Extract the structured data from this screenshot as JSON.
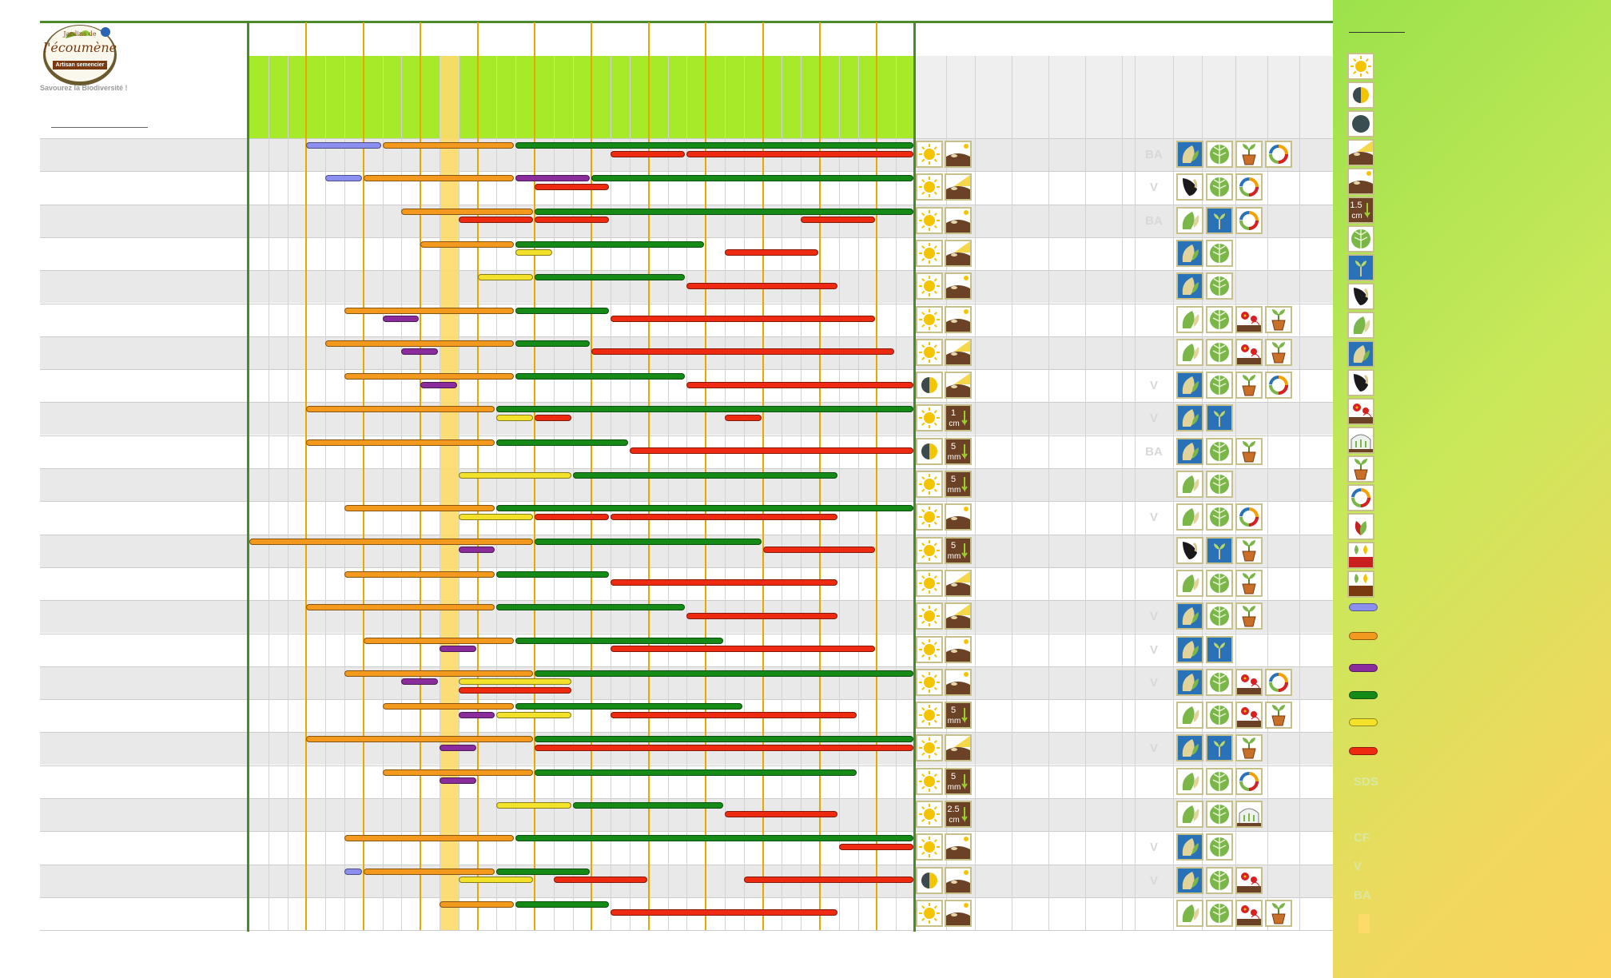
{
  "brand": {
    "logo_lines": [
      "Jardins de",
      "l'écoumène",
      "Artisan semencier"
    ],
    "tagline": "Savourez la Biodiversité !"
  },
  "colors": {
    "lavender": "#8b8ff0",
    "orange": "#f39a1e",
    "purple": "#8a2c9c",
    "green": "#168a16",
    "yellow": "#f3e12b",
    "red": "#ee2a10",
    "header_green": "#a6ea2a",
    "frame_green": "#4a8a2a",
    "month_gold": "#e5a900",
    "highlight": "#fddb6a"
  },
  "month_columns": 12,
  "rows": [
    {
      "bars": [
        {
          "c": "lavender",
          "s": 3,
          "e": 7,
          "l": 0
        },
        {
          "c": "orange",
          "s": 7,
          "e": 14,
          "l": 0
        },
        {
          "c": "green",
          "s": 14,
          "e": 35,
          "l": 0
        },
        {
          "c": "red",
          "s": 19,
          "e": 23,
          "l": 1
        },
        {
          "c": "red",
          "s": 23,
          "e": 35,
          "l": 1
        }
      ],
      "exposure": "sun",
      "soil": "soil",
      "badge": "BA",
      "icons": [
        "seed-blue-icon",
        "leaf-icon",
        "pot-icon",
        "cycle-icon"
      ]
    },
    {
      "bars": [
        {
          "c": "lavender",
          "s": 4,
          "e": 6,
          "l": 0
        },
        {
          "c": "orange",
          "s": 6,
          "e": 14,
          "l": 0
        },
        {
          "c": "purple",
          "s": 14,
          "e": 18,
          "l": 0
        },
        {
          "c": "green",
          "s": 18,
          "e": 35,
          "l": 0
        },
        {
          "c": "red",
          "s": 15,
          "e": 19,
          "l": 1
        }
      ],
      "exposure": "sun",
      "soil": "sun-soil",
      "badge": "V",
      "icons": [
        "seed-black-icon",
        "leaf-icon",
        "cycle-icon"
      ]
    },
    {
      "bars": [
        {
          "c": "orange",
          "s": 8,
          "e": 15,
          "l": 0
        },
        {
          "c": "green",
          "s": 15,
          "e": 35,
          "l": 0
        },
        {
          "c": "red",
          "s": 11,
          "e": 15,
          "l": 1
        },
        {
          "c": "red",
          "s": 15,
          "e": 19,
          "l": 1
        },
        {
          "c": "red",
          "s": 29,
          "e": 33,
          "l": 1
        }
      ],
      "exposure": "sun",
      "soil": "soil",
      "badge": "BA",
      "icons": [
        "seed-green-icon",
        "sprout-icon",
        "cycle-icon"
      ]
    },
    {
      "bars": [
        {
          "c": "orange",
          "s": 9,
          "e": 14,
          "l": 0
        },
        {
          "c": "green",
          "s": 14,
          "e": 24,
          "l": 0
        },
        {
          "c": "yellow",
          "s": 14,
          "e": 16,
          "l": 1
        },
        {
          "c": "red",
          "s": 25,
          "e": 30,
          "l": 1
        }
      ],
      "exposure": "sun",
      "soil": "sun-soil",
      "badge": "",
      "icons": [
        "seed-blue-icon",
        "leaf-icon"
      ]
    },
    {
      "bars": [
        {
          "c": "yellow",
          "s": 12,
          "e": 15,
          "l": 0
        },
        {
          "c": "green",
          "s": 15,
          "e": 23,
          "l": 0
        },
        {
          "c": "red",
          "s": 23,
          "e": 31,
          "l": 1
        }
      ],
      "exposure": "sun",
      "soil": "soil",
      "badge": "",
      "icons": [
        "seed-blue-icon",
        "leaf-icon"
      ]
    },
    {
      "bars": [
        {
          "c": "orange",
          "s": 5,
          "e": 14,
          "l": 0
        },
        {
          "c": "green",
          "s": 14,
          "e": 19,
          "l": 0
        },
        {
          "c": "purple",
          "s": 7,
          "e": 9,
          "l": 1
        },
        {
          "c": "red",
          "s": 19,
          "e": 33,
          "l": 1
        }
      ],
      "exposure": "sun",
      "soil": "soil",
      "badge": "",
      "icons": [
        "seed-green-icon",
        "leaf-icon",
        "flower-icon",
        "pot-icon"
      ]
    },
    {
      "bars": [
        {
          "c": "orange",
          "s": 4,
          "e": 14,
          "l": 0
        },
        {
          "c": "green",
          "s": 14,
          "e": 18,
          "l": 0
        },
        {
          "c": "purple",
          "s": 8,
          "e": 10,
          "l": 1
        },
        {
          "c": "red",
          "s": 18,
          "e": 34,
          "l": 1
        }
      ],
      "exposure": "sun",
      "soil": "sun-soil",
      "badge": "",
      "icons": [
        "seed-green-icon",
        "leaf-icon",
        "flower-icon",
        "pot-icon"
      ]
    },
    {
      "bars": [
        {
          "c": "orange",
          "s": 5,
          "e": 14,
          "l": 0
        },
        {
          "c": "green",
          "s": 14,
          "e": 23,
          "l": 0
        },
        {
          "c": "purple",
          "s": 9,
          "e": 11,
          "l": 1
        },
        {
          "c": "red",
          "s": 23,
          "e": 35,
          "l": 1
        }
      ],
      "exposure": "half",
      "soil": "sun-soil",
      "badge": "V",
      "icons": [
        "seed-blue-icon",
        "leaf-icon",
        "pot-icon",
        "cycle-icon"
      ]
    },
    {
      "bars": [
        {
          "c": "orange",
          "s": 3,
          "e": 13,
          "l": 0
        },
        {
          "c": "green",
          "s": 13,
          "e": 35,
          "l": 0
        },
        {
          "c": "yellow",
          "s": 13,
          "e": 15,
          "l": 1
        },
        {
          "c": "red",
          "s": 15,
          "e": 17,
          "l": 1
        },
        {
          "c": "red",
          "s": 25,
          "e": 27,
          "l": 1
        }
      ],
      "exposure": "sun",
      "soil": "depth",
      "depth": [
        "1",
        "cm"
      ],
      "badge": "V",
      "icons": [
        "seed-blue-icon",
        "sprout-icon"
      ]
    },
    {
      "bars": [
        {
          "c": "orange",
          "s": 3,
          "e": 13,
          "l": 0
        },
        {
          "c": "green",
          "s": 13,
          "e": 20,
          "l": 0
        },
        {
          "c": "red",
          "s": 20,
          "e": 35,
          "l": 1
        }
      ],
      "exposure": "half",
      "soil": "depth",
      "depth": [
        "5",
        "mm"
      ],
      "badge": "BA",
      "icons": [
        "seed-blue-icon",
        "leaf-icon",
        "pot-icon"
      ]
    },
    {
      "bars": [
        {
          "c": "yellow",
          "s": 11,
          "e": 17,
          "l": 0
        },
        {
          "c": "green",
          "s": 17,
          "e": 31,
          "l": 0
        }
      ],
      "exposure": "sun",
      "soil": "depth",
      "depth": [
        "5",
        "mm"
      ],
      "badge": "",
      "icons": [
        "seed-green-icon",
        "leaf-icon"
      ]
    },
    {
      "bars": [
        {
          "c": "orange",
          "s": 5,
          "e": 13,
          "l": 0
        },
        {
          "c": "green",
          "s": 13,
          "e": 35,
          "l": 0
        },
        {
          "c": "yellow",
          "s": 11,
          "e": 15,
          "l": 1
        },
        {
          "c": "red",
          "s": 15,
          "e": 19,
          "l": 1
        },
        {
          "c": "red",
          "s": 19,
          "e": 31,
          "l": 1
        }
      ],
      "exposure": "sun",
      "soil": "soil",
      "badge": "V",
      "icons": [
        "seed-green-icon",
        "leaf-icon",
        "cycle-icon"
      ]
    },
    {
      "bars": [
        {
          "c": "orange",
          "s": 0,
          "e": 15,
          "l": 0
        },
        {
          "c": "green",
          "s": 15,
          "e": 27,
          "l": 0
        },
        {
          "c": "purple",
          "s": 11,
          "e": 13,
          "l": 1
        },
        {
          "c": "red",
          "s": 27,
          "e": 33,
          "l": 1
        }
      ],
      "exposure": "sun",
      "soil": "depth",
      "depth": [
        "5",
        "mm"
      ],
      "badge": "",
      "icons": [
        "seed-black-icon",
        "sprout-icon",
        "pot-icon"
      ]
    },
    {
      "bars": [
        {
          "c": "orange",
          "s": 5,
          "e": 13,
          "l": 0
        },
        {
          "c": "green",
          "s": 13,
          "e": 19,
          "l": 0
        },
        {
          "c": "red",
          "s": 19,
          "e": 31,
          "l": 1
        }
      ],
      "exposure": "sun",
      "soil": "sun-soil",
      "badge": "",
      "icons": [
        "seed-green-icon",
        "leaf-icon",
        "pot-icon"
      ]
    },
    {
      "bars": [
        {
          "c": "orange",
          "s": 3,
          "e": 13,
          "l": 0
        },
        {
          "c": "green",
          "s": 13,
          "e": 23,
          "l": 0
        },
        {
          "c": "red",
          "s": 23,
          "e": 31,
          "l": 1
        }
      ],
      "exposure": "sun",
      "soil": "sun-soil",
      "badge": "V",
      "icons": [
        "seed-blue-icon",
        "leaf-icon",
        "pot-icon"
      ]
    },
    {
      "bars": [
        {
          "c": "orange",
          "s": 6,
          "e": 14,
          "l": 0
        },
        {
          "c": "green",
          "s": 14,
          "e": 25,
          "l": 0
        },
        {
          "c": "purple",
          "s": 10,
          "e": 12,
          "l": 1
        },
        {
          "c": "red",
          "s": 19,
          "e": 33,
          "l": 1
        }
      ],
      "exposure": "sun",
      "soil": "soil",
      "badge": "V",
      "icons": [
        "seed-blue-icon",
        "sprout-icon"
      ]
    },
    {
      "bars": [
        {
          "c": "orange",
          "s": 5,
          "e": 15,
          "l": 0
        },
        {
          "c": "green",
          "s": 15,
          "e": 35,
          "l": 0
        },
        {
          "c": "purple",
          "s": 8,
          "e": 10,
          "l": 1
        },
        {
          "c": "yellow",
          "s": 11,
          "e": 17,
          "l": 1
        },
        {
          "c": "red",
          "s": 11,
          "e": 17,
          "l": 2
        }
      ],
      "exposure": "sun",
      "soil": "soil",
      "badge": "V",
      "icons": [
        "seed-blue-icon",
        "leaf-icon",
        "flower-icon",
        "cycle-icon"
      ]
    },
    {
      "bars": [
        {
          "c": "orange",
          "s": 7,
          "e": 14,
          "l": 0
        },
        {
          "c": "green",
          "s": 14,
          "e": 26,
          "l": 0
        },
        {
          "c": "purple",
          "s": 11,
          "e": 13,
          "l": 1
        },
        {
          "c": "yellow",
          "s": 13,
          "e": 17,
          "l": 1
        },
        {
          "c": "red",
          "s": 19,
          "e": 32,
          "l": 1
        }
      ],
      "exposure": "sun",
      "soil": "depth",
      "depth": [
        "5",
        "mm"
      ],
      "badge": "",
      "icons": [
        "seed-green-icon",
        "leaf-icon",
        "flower-icon",
        "pot-icon"
      ]
    },
    {
      "bars": [
        {
          "c": "orange",
          "s": 3,
          "e": 15,
          "l": 0
        },
        {
          "c": "green",
          "s": 15,
          "e": 35,
          "l": 0
        },
        {
          "c": "purple",
          "s": 10,
          "e": 12,
          "l": 1
        },
        {
          "c": "red",
          "s": 15,
          "e": 35,
          "l": 1
        }
      ],
      "exposure": "sun",
      "soil": "sun-soil",
      "badge": "V",
      "icons": [
        "seed-blue-icon",
        "sprout-icon",
        "pot-icon"
      ]
    },
    {
      "bars": [
        {
          "c": "orange",
          "s": 7,
          "e": 15,
          "l": 0
        },
        {
          "c": "green",
          "s": 15,
          "e": 32,
          "l": 0
        },
        {
          "c": "purple",
          "s": 10,
          "e": 12,
          "l": 1
        }
      ],
      "exposure": "sun",
      "soil": "depth",
      "depth": [
        "5",
        "mm"
      ],
      "badge": "",
      "icons": [
        "seed-green-icon",
        "leaf-icon",
        "cycle-icon"
      ]
    },
    {
      "bars": [
        {
          "c": "yellow",
          "s": 13,
          "e": 17,
          "l": 0
        },
        {
          "c": "green",
          "s": 17,
          "e": 25,
          "l": 0
        },
        {
          "c": "red",
          "s": 25,
          "e": 31,
          "l": 1
        }
      ],
      "exposure": "sun",
      "soil": "depth",
      "depth": [
        "2.5",
        "cm"
      ],
      "badge": "",
      "icons": [
        "seed-green-icon",
        "leaf-icon",
        "greenhouse-icon"
      ]
    },
    {
      "bars": [
        {
          "c": "orange",
          "s": 5,
          "e": 14,
          "l": 0
        },
        {
          "c": "green",
          "s": 14,
          "e": 35,
          "l": 0
        },
        {
          "c": "red",
          "s": 31,
          "e": 35,
          "l": 1
        }
      ],
      "exposure": "sun",
      "soil": "soil",
      "badge": "V",
      "icons": [
        "seed-blue-icon",
        "leaf-icon"
      ]
    },
    {
      "bars": [
        {
          "c": "lavender",
          "s": 5,
          "e": 6,
          "l": 0
        },
        {
          "c": "orange",
          "s": 6,
          "e": 13,
          "l": 0
        },
        {
          "c": "green",
          "s": 13,
          "e": 18,
          "l": 0
        },
        {
          "c": "yellow",
          "s": 11,
          "e": 15,
          "l": 1
        },
        {
          "c": "red",
          "s": 16,
          "e": 21,
          "l": 1
        },
        {
          "c": "red",
          "s": 26,
          "e": 35,
          "l": 1
        }
      ],
      "exposure": "half",
      "soil": "soil",
      "badge": "V",
      "icons": [
        "seed-blue-icon",
        "leaf-icon",
        "flower-icon"
      ]
    },
    {
      "bars": [
        {
          "c": "orange",
          "s": 10,
          "e": 14,
          "l": 0
        },
        {
          "c": "green",
          "s": 14,
          "e": 19,
          "l": 0
        },
        {
          "c": "red",
          "s": 19,
          "e": 31,
          "l": 1
        }
      ],
      "exposure": "sun",
      "soil": "soil",
      "badge": "",
      "icons": [
        "seed-green-icon",
        "leaf-icon",
        "flower-icon",
        "pot-icon"
      ]
    }
  ],
  "legend": {
    "icons": [
      "sun-icon",
      "half-shade-icon",
      "shade-icon",
      "sun-soil-icon",
      "soil-icon",
      "depth-icon",
      "leaf-icon",
      "sprout-icon",
      "seed-black-icon",
      "seed-green-icon",
      "seed-blue-icon",
      "seed-black-icon",
      "flower-icon",
      "greenhouse-icon",
      "pot-icon",
      "cycle-icon",
      "leaf-red-icon",
      "label-red-icon",
      "label-brown-icon"
    ],
    "depth_label": [
      "1.5",
      "cm"
    ],
    "swatches": [
      "lavender",
      "orange",
      "purple",
      "green",
      "yellow",
      "red"
    ],
    "abbreviations": [
      "SDS",
      "CF",
      "V",
      "BA"
    ]
  }
}
